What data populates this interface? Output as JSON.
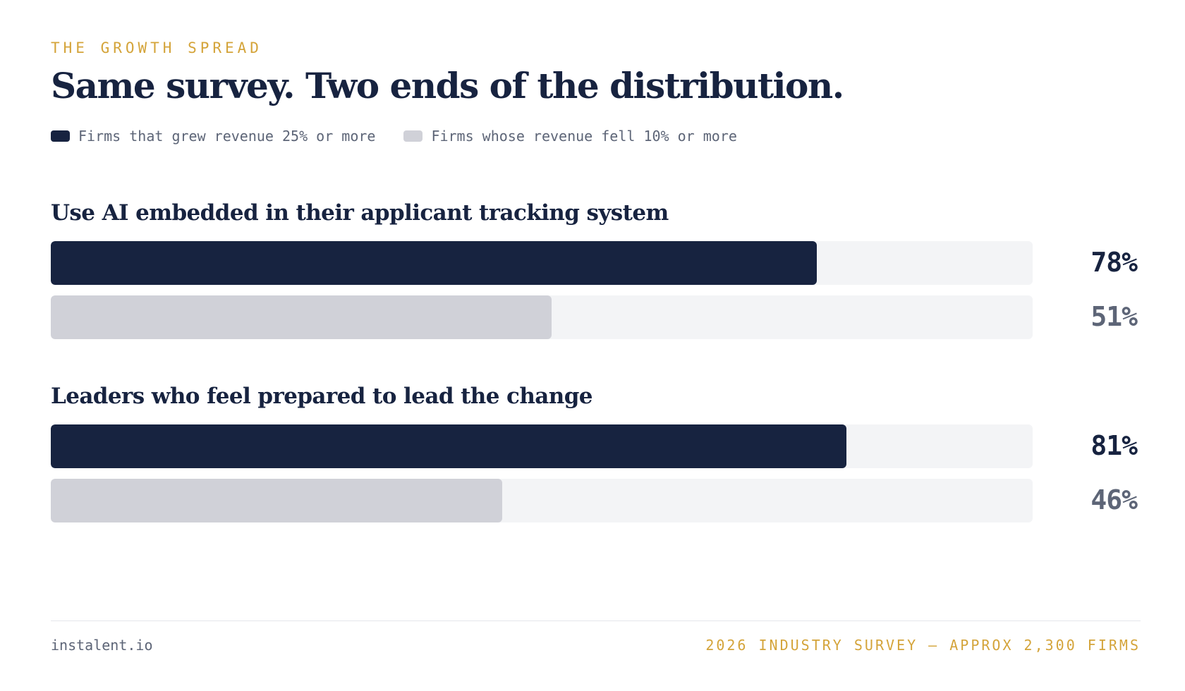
{
  "eyebrow": "THE GROWTH SPREAD",
  "title": "Same survey. Two ends of the distribution.",
  "colors": {
    "growth": "#172340",
    "decline": "#d0d1d8",
    "track": "#f3f4f6",
    "accent": "#d4a43a",
    "decline_value_text": "#5d6577"
  },
  "chart_data": {
    "type": "bar",
    "orientation": "horizontal",
    "xlim": [
      0,
      100
    ],
    "unit": "%",
    "legend_placement": "top-left",
    "series": [
      {
        "name": "Firms that grew revenue 25% or more",
        "values": [
          78,
          81
        ]
      },
      {
        "name": "Firms whose revenue fell 10% or more",
        "values": [
          51,
          46
        ]
      }
    ],
    "categories": [
      "Use AI embedded in their applicant tracking system",
      "Leaders who feel prepared to lead the change"
    ],
    "data_labels": [
      [
        "78%",
        "51%"
      ],
      [
        "81%",
        "46%"
      ]
    ]
  },
  "footer": {
    "source": "instalent.io",
    "note": "2026 INDUSTRY SURVEY — APPROX 2,300 FIRMS"
  }
}
